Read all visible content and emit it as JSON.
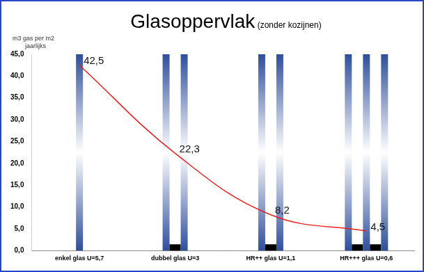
{
  "chart_data": {
    "type": "line",
    "title": "Glasoppervlak",
    "subtitle": "(zonder kozijnen)",
    "ylabel": [
      "m3 gas per m2",
      "jaarlijks"
    ],
    "categories": [
      "enkel glas U=5,7",
      "dubbel glas U=3",
      "HR++ glas U=1,1",
      "HR+++ glas U=0,6"
    ],
    "values": [
      42.5,
      22.3,
      8.2,
      4.5
    ],
    "value_labels": [
      "42,5",
      "22,3",
      "8,2",
      "4,5"
    ],
    "data_labels": true,
    "color": "#e8201e",
    "marker": "none",
    "line_style": "solid",
    "ylim": [
      0,
      45
    ],
    "yticks": [
      {
        "value": 0,
        "label": "0,0"
      },
      {
        "value": 5,
        "label": "5,0"
      },
      {
        "value": 10,
        "label": "10,0"
      },
      {
        "value": 15,
        "label": "15,0"
      },
      {
        "value": 20,
        "label": "20,0"
      },
      {
        "value": 25,
        "label": "25,0"
      },
      {
        "value": 30,
        "label": "30,0"
      },
      {
        "value": 35,
        "label": "35,0"
      },
      {
        "value": 40,
        "label": "40,0"
      },
      {
        "value": 45,
        "label": "45,0"
      }
    ],
    "grid": false
  }
}
